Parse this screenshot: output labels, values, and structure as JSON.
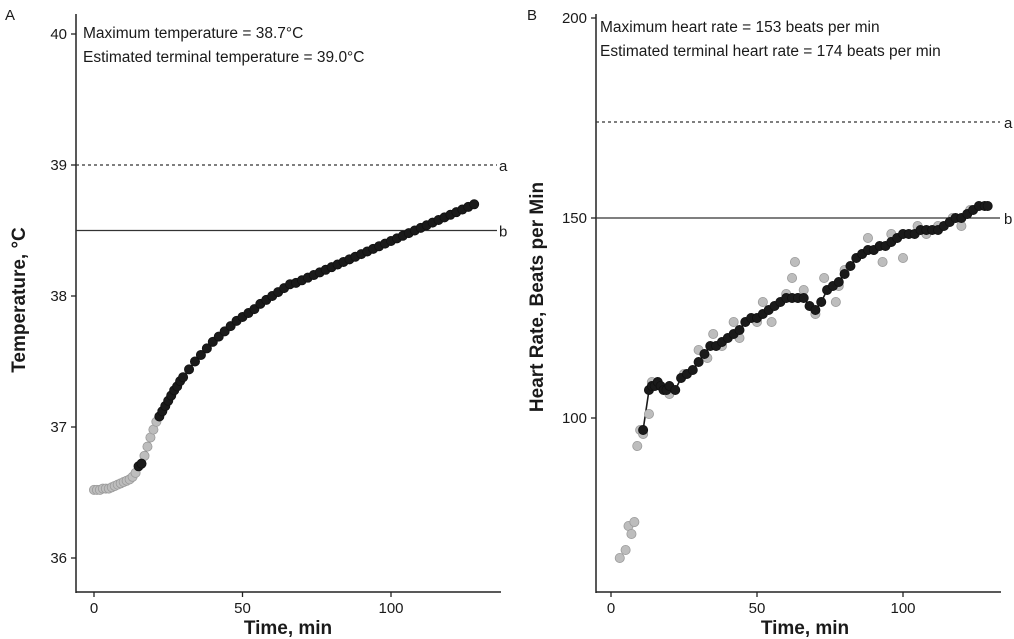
{
  "chart_data": [
    {
      "type": "scatter",
      "panel_label": "A",
      "xlabel": "Time, min",
      "ylabel": "Temperature, °C",
      "xlim": [
        -5,
        133
      ],
      "ylim": [
        35.8,
        40.2
      ],
      "x_ticks": [
        0,
        50,
        100
      ],
      "y_ticks": [
        36,
        37,
        38,
        39,
        40
      ],
      "grid": false,
      "annotations": [
        "Maximum temperature = 38.7°C",
        "Estimated terminal temperature = 39.0°C"
      ],
      "reference_lines": [
        {
          "label": "a",
          "y": 39.0,
          "style": "dashed"
        },
        {
          "label": "b",
          "y": 38.5,
          "style": "solid"
        }
      ],
      "series": [
        {
          "color": "#bdbdbd",
          "points": [
            [
              0,
              36.52
            ],
            [
              1,
              36.52
            ],
            [
              2,
              36.52
            ],
            [
              3,
              36.53
            ],
            [
              4,
              36.53
            ],
            [
              5,
              36.53
            ],
            [
              6,
              36.54
            ],
            [
              7,
              36.55
            ],
            [
              8,
              36.56
            ],
            [
              9,
              36.57
            ],
            [
              10,
              36.58
            ],
            [
              11,
              36.59
            ],
            [
              12,
              36.6
            ],
            [
              13,
              36.62
            ],
            [
              14,
              36.65
            ],
            [
              17,
              36.78
            ],
            [
              18,
              36.85
            ],
            [
              19,
              36.92
            ],
            [
              20,
              36.98
            ],
            [
              21,
              37.04
            ]
          ]
        },
        {
          "color": "#1a1a1a",
          "points": [
            [
              15,
              36.7
            ],
            [
              16,
              36.72
            ],
            [
              22,
              37.08
            ],
            [
              23,
              37.12
            ],
            [
              24,
              37.16
            ],
            [
              25,
              37.2
            ],
            [
              26,
              37.24
            ],
            [
              27,
              37.28
            ],
            [
              28,
              37.31
            ],
            [
              29,
              37.35
            ],
            [
              30,
              37.38
            ],
            [
              32,
              37.44
            ],
            [
              34,
              37.5
            ],
            [
              36,
              37.55
            ],
            [
              38,
              37.6
            ],
            [
              40,
              37.65
            ],
            [
              42,
              37.69
            ],
            [
              44,
              37.73
            ],
            [
              46,
              37.77
            ],
            [
              48,
              37.81
            ],
            [
              50,
              37.84
            ],
            [
              52,
              37.87
            ],
            [
              54,
              37.9
            ],
            [
              56,
              37.94
            ],
            [
              58,
              37.97
            ],
            [
              60,
              38.0
            ],
            [
              62,
              38.03
            ],
            [
              64,
              38.06
            ],
            [
              66,
              38.09
            ],
            [
              68,
              38.1
            ],
            [
              70,
              38.12
            ],
            [
              72,
              38.14
            ],
            [
              74,
              38.16
            ],
            [
              76,
              38.18
            ],
            [
              78,
              38.2
            ],
            [
              80,
              38.22
            ],
            [
              82,
              38.24
            ],
            [
              84,
              38.26
            ],
            [
              86,
              38.28
            ],
            [
              88,
              38.3
            ],
            [
              90,
              38.32
            ],
            [
              92,
              38.34
            ],
            [
              94,
              38.36
            ],
            [
              96,
              38.38
            ],
            [
              98,
              38.4
            ],
            [
              100,
              38.42
            ],
            [
              102,
              38.44
            ],
            [
              104,
              38.46
            ],
            [
              106,
              38.48
            ],
            [
              108,
              38.5
            ],
            [
              110,
              38.52
            ],
            [
              112,
              38.54
            ],
            [
              114,
              38.56
            ],
            [
              116,
              38.58
            ],
            [
              118,
              38.6
            ],
            [
              120,
              38.62
            ],
            [
              122,
              38.64
            ],
            [
              124,
              38.66
            ],
            [
              126,
              38.68
            ],
            [
              128,
              38.7
            ]
          ]
        }
      ]
    },
    {
      "type": "scatter",
      "panel_label": "B",
      "xlabel": "Time, min",
      "ylabel": "Heart Rate, Beats per Min",
      "xlim": [
        -5,
        133
      ],
      "ylim": [
        60,
        200
      ],
      "x_ticks": [
        0,
        50,
        100
      ],
      "y_ticks": [
        100,
        150,
        200
      ],
      "grid": false,
      "annotations": [
        "Maximum heart rate = 153 beats per min",
        "Estimated terminal heart rate = 174 beats per min"
      ],
      "reference_lines": [
        {
          "label": "a",
          "y": 174,
          "style": "dashed"
        },
        {
          "label": "b",
          "y": 150,
          "style": "solid"
        }
      ],
      "series": [
        {
          "color": "#bdbdbd",
          "points": [
            [
              3,
              65
            ],
            [
              5,
              67
            ],
            [
              6,
              73
            ],
            [
              7,
              71
            ],
            [
              8,
              74
            ],
            [
              9,
              93
            ],
            [
              10,
              97
            ],
            [
              11,
              96
            ],
            [
              13,
              101
            ],
            [
              14,
              109
            ],
            [
              20,
              106
            ],
            [
              25,
              111
            ],
            [
              30,
              117
            ],
            [
              33,
              115
            ],
            [
              35,
              121
            ],
            [
              38,
              118
            ],
            [
              42,
              124
            ],
            [
              44,
              120
            ],
            [
              50,
              124
            ],
            [
              52,
              129
            ],
            [
              55,
              124
            ],
            [
              60,
              131
            ],
            [
              62,
              135
            ],
            [
              63,
              139
            ],
            [
              64,
              130
            ],
            [
              66,
              132
            ],
            [
              70,
              126
            ],
            [
              73,
              135
            ],
            [
              77,
              129
            ],
            [
              78,
              133
            ],
            [
              80,
              137
            ],
            [
              86,
              141
            ],
            [
              88,
              145
            ],
            [
              93,
              139
            ],
            [
              96,
              146
            ],
            [
              100,
              140
            ],
            [
              105,
              148
            ],
            [
              108,
              146
            ],
            [
              112,
              148
            ],
            [
              117,
              150
            ],
            [
              120,
              148
            ],
            [
              123,
              152
            ]
          ]
        },
        {
          "color": "#1a1a1a",
          "points": [
            [
              11,
              97
            ],
            [
              13,
              107
            ],
            [
              14,
              108
            ],
            [
              15,
              108
            ],
            [
              16,
              109
            ],
            [
              17,
              108
            ],
            [
              18,
              107
            ],
            [
              19,
              107
            ],
            [
              20,
              108
            ],
            [
              22,
              107
            ],
            [
              24,
              110
            ],
            [
              26,
              111
            ],
            [
              28,
              112
            ],
            [
              30,
              114
            ],
            [
              32,
              116
            ],
            [
              34,
              118
            ],
            [
              36,
              118
            ],
            [
              38,
              119
            ],
            [
              40,
              120
            ],
            [
              42,
              121
            ],
            [
              44,
              122
            ],
            [
              46,
              124
            ],
            [
              48,
              125
            ],
            [
              50,
              125
            ],
            [
              52,
              126
            ],
            [
              54,
              127
            ],
            [
              56,
              128
            ],
            [
              58,
              129
            ],
            [
              60,
              130
            ],
            [
              62,
              130
            ],
            [
              64,
              130
            ],
            [
              66,
              130
            ],
            [
              68,
              128
            ],
            [
              70,
              127
            ],
            [
              72,
              129
            ],
            [
              74,
              132
            ],
            [
              76,
              133
            ],
            [
              78,
              134
            ],
            [
              80,
              136
            ],
            [
              82,
              138
            ],
            [
              84,
              140
            ],
            [
              86,
              141
            ],
            [
              88,
              142
            ],
            [
              90,
              142
            ],
            [
              92,
              143
            ],
            [
              94,
              143
            ],
            [
              96,
              144
            ],
            [
              98,
              145
            ],
            [
              100,
              146
            ],
            [
              102,
              146
            ],
            [
              104,
              146
            ],
            [
              106,
              147
            ],
            [
              108,
              147
            ],
            [
              110,
              147
            ],
            [
              112,
              147
            ],
            [
              114,
              148
            ],
            [
              116,
              149
            ],
            [
              118,
              150
            ],
            [
              120,
              150
            ],
            [
              122,
              151
            ],
            [
              124,
              152
            ],
            [
              126,
              153
            ],
            [
              128,
              153
            ],
            [
              129,
              153
            ]
          ]
        }
      ]
    }
  ]
}
